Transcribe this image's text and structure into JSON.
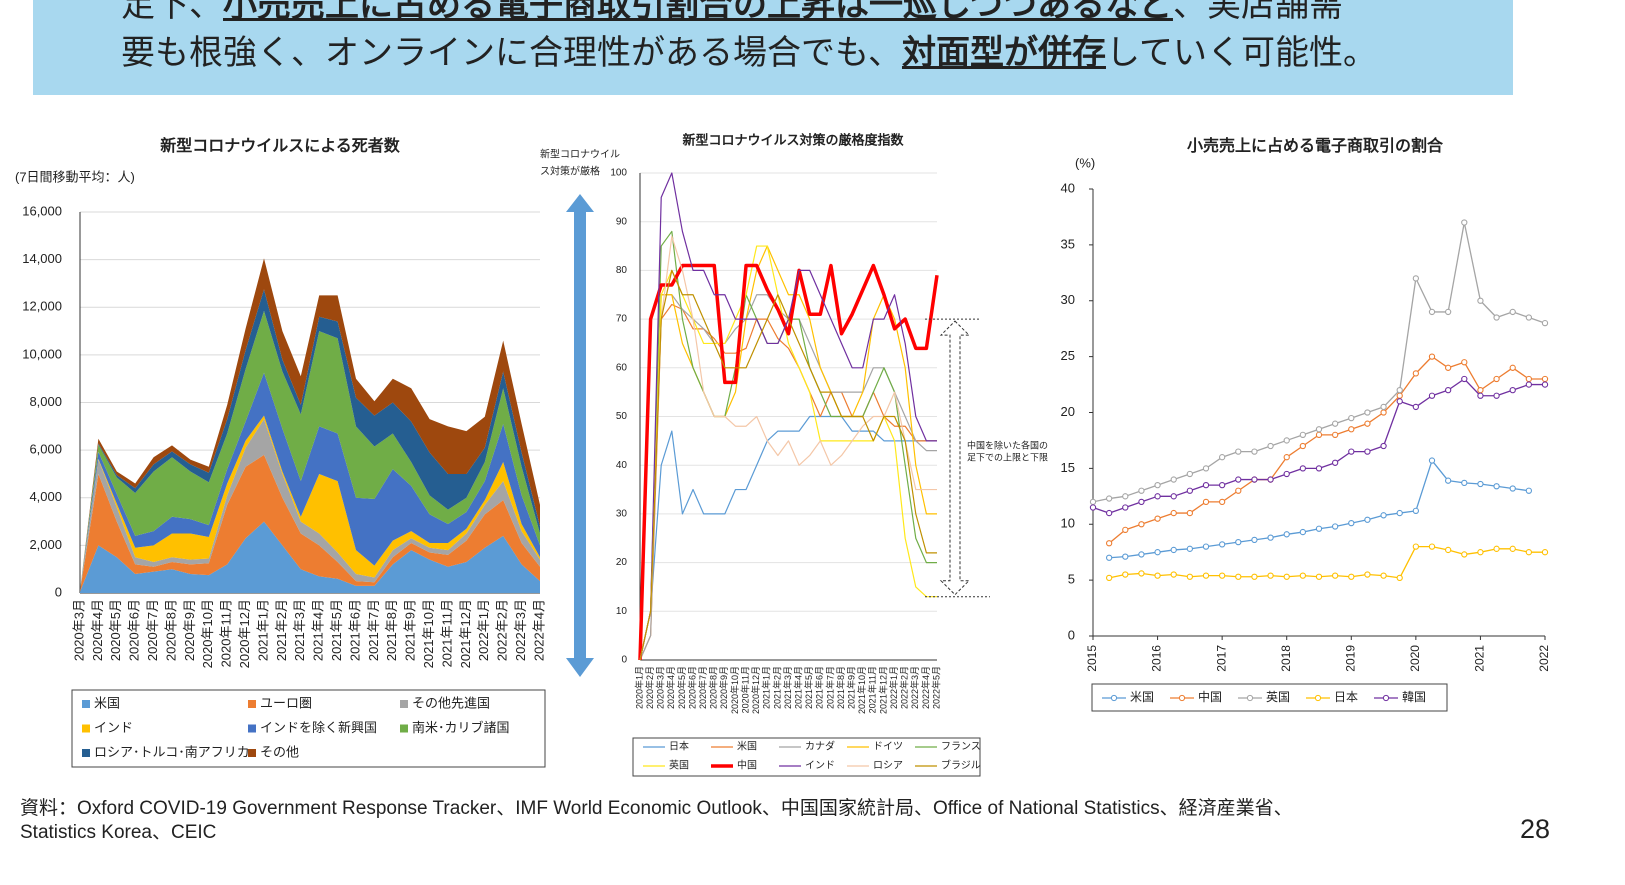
{
  "banner": {
    "line1": [
      "足下、",
      "小売売上に占める電子商取引割合の上昇は一巡しつつあるなど",
      "、実店舗需"
    ],
    "line2": [
      "要も根強く、オンラインに合理性がある場合でも、",
      "対面型が併存",
      "していく可能性。"
    ]
  },
  "chart_data": [
    {
      "type": "area",
      "stacked": true,
      "title": "新型コロナウイルスによる死者数",
      "y_unit": "(7日間移動平均：人)",
      "categories": [
        "2020年3月",
        "2020年4月",
        "2020年5月",
        "2020年6月",
        "2020年7月",
        "2020年8月",
        "2020年9月",
        "2020年10月",
        "2020年11月",
        "2020年12月",
        "2021年1月",
        "2021年2月",
        "2021年3月",
        "2021年4月",
        "2021年5月",
        "2021年6月",
        "2021年7月",
        "2021年8月",
        "2021年9月",
        "2021年10月",
        "2021年11月",
        "2021年12月",
        "2022年1月",
        "2022年2月",
        "2022年3月",
        "2022年4月"
      ],
      "ylim": [
        0,
        16000
      ],
      "yticks": [
        0,
        {
          "value": 2000,
          "label": "2,000"
        },
        {
          "value": 4000,
          "label": "4,000"
        },
        {
          "value": 6000,
          "label": "6,000"
        },
        {
          "value": 8000,
          "label": "8,000"
        },
        {
          "value": 10000,
          "label": "10,000"
        },
        {
          "value": 12000,
          "label": "12,000"
        },
        {
          "value": 14000,
          "label": "14,000"
        },
        {
          "value": 16000,
          "label": "16,000"
        }
      ],
      "grid": true,
      "series": [
        {
          "name": "米国",
          "color": "#5b9bd5",
          "values": [
            50,
            2000,
            1500,
            800,
            900,
            1000,
            800,
            750,
            1200,
            2300,
            3000,
            2000,
            1000,
            700,
            600,
            300,
            300,
            1200,
            1800,
            1400,
            1100,
            1300,
            1900,
            2400,
            1200,
            500
          ]
        },
        {
          "name": "ユーロ圏",
          "color": "#ed7d31",
          "values": [
            40,
            3000,
            1500,
            400,
            200,
            300,
            400,
            500,
            2500,
            3000,
            2800,
            2000,
            1500,
            1300,
            700,
            200,
            150,
            300,
            300,
            300,
            500,
            900,
            1400,
            1500,
            900,
            600
          ]
        },
        {
          "name": "その他先進国",
          "color": "#a5a5a5",
          "values": [
            5,
            600,
            600,
            300,
            200,
            200,
            200,
            200,
            400,
            800,
            1500,
            1000,
            500,
            500,
            400,
            300,
            200,
            300,
            200,
            200,
            200,
            300,
            400,
            800,
            500,
            300
          ]
        },
        {
          "name": "インド",
          "color": "#ffc000",
          "values": [
            0,
            30,
            150,
            400,
            700,
            1000,
            1100,
            900,
            500,
            300,
            150,
            100,
            200,
            2500,
            3000,
            1000,
            500,
            400,
            300,
            200,
            300,
            200,
            200,
            800,
            300,
            100
          ]
        },
        {
          "name": "インドを除く新興国",
          "color": "#4472c4",
          "values": [
            5,
            300,
            400,
            500,
            600,
            700,
            600,
            500,
            600,
            800,
            1800,
            1800,
            1500,
            2000,
            2000,
            2200,
            2800,
            3000,
            1900,
            1200,
            800,
            700,
            800,
            1600,
            1200,
            500
          ]
        },
        {
          "name": "南米･カリブ諸国",
          "color": "#70ad47",
          "values": [
            0,
            300,
            700,
            1800,
            2500,
            2500,
            2000,
            1800,
            1500,
            2200,
            2600,
            2400,
            2800,
            4000,
            4000,
            3000,
            2200,
            1500,
            1000,
            800,
            600,
            600,
            800,
            1500,
            1200,
            500
          ]
        },
        {
          "name": "ロシア･トルコ･南アフリカ",
          "color": "#255e91",
          "values": [
            0,
            50,
            100,
            200,
            300,
            250,
            300,
            400,
            600,
            800,
            900,
            500,
            400,
            600,
            700,
            1200,
            1300,
            1300,
            1700,
            1800,
            1500,
            1000,
            600,
            700,
            600,
            300
          ]
        },
        {
          "name": "その他",
          "color": "#9e480e",
          "values": [
            0,
            200,
            150,
            200,
            300,
            250,
            200,
            250,
            600,
            900,
            1300,
            1200,
            1200,
            900,
            1100,
            800,
            600,
            1000,
            1400,
            1400,
            2000,
            1800,
            1300,
            1300,
            1200,
            900
          ]
        }
      ]
    },
    {
      "type": "line",
      "title": "新型コロナウイルス対策の厳格度指数",
      "annotations": [
        "新型コロナウイル",
        "ス対策が厳格",
        "中国を除いた各国の",
        "足下での上限と下限"
      ],
      "annotation_range": [
        13,
        70
      ],
      "categories": [
        "2020年1月",
        "2020年2月",
        "2020年3月",
        "2020年4月",
        "2020年5月",
        "2020年6月",
        "2020年7月",
        "2020年8月",
        "2020年9月",
        "2020年10月",
        "2020年11月",
        "2020年12月",
        "2021年1月",
        "2021年2月",
        "2021年3月",
        "2021年4月",
        "2021年5月",
        "2021年6月",
        "2021年7月",
        "2021年8月",
        "2021年9月",
        "2021年10月",
        "2021年11月",
        "2021年12月",
        "2022年1月",
        "2022年2月",
        "2022年3月",
        "2022年4月",
        "2022年5月"
      ],
      "ylim": [
        0,
        100
      ],
      "yticks": [
        0,
        10,
        20,
        30,
        40,
        50,
        60,
        70,
        80,
        90,
        100
      ],
      "grid": true,
      "series": [
        {
          "name": "日本",
          "color": "#5b9bd5",
          "values": [
            0,
            10,
            40,
            47,
            30,
            35,
            30,
            30,
            30,
            35,
            35,
            40,
            45,
            47,
            47,
            47,
            50,
            50,
            50,
            50,
            47,
            47,
            47,
            45,
            45,
            45,
            45,
            45,
            45
          ]
        },
        {
          "name": "米国",
          "color": "#ed7d31",
          "values": [
            0,
            5,
            70,
            73,
            72,
            68,
            68,
            66,
            63,
            63,
            64,
            70,
            70,
            66,
            64,
            60,
            55,
            50,
            55,
            55,
            50,
            50,
            55,
            50,
            48,
            48,
            45,
            45,
            45
          ]
        },
        {
          "name": "カナダ",
          "color": "#a5a5a5",
          "values": [
            0,
            5,
            75,
            75,
            72,
            70,
            68,
            65,
            65,
            68,
            70,
            75,
            75,
            72,
            70,
            70,
            65,
            60,
            55,
            55,
            55,
            55,
            60,
            60,
            55,
            50,
            45,
            43,
            43
          ]
        },
        {
          "name": "ドイツ",
          "color": "#ffc000",
          "values": [
            0,
            10,
            75,
            75,
            65,
            60,
            55,
            50,
            50,
            55,
            70,
            80,
            85,
            80,
            75,
            75,
            70,
            60,
            55,
            50,
            50,
            55,
            70,
            75,
            70,
            60,
            40,
            30,
            30
          ]
        },
        {
          "name": "フランス",
          "color": "#70ad47",
          "values": [
            0,
            10,
            85,
            88,
            70,
            60,
            55,
            50,
            50,
            60,
            75,
            70,
            65,
            65,
            70,
            70,
            60,
            55,
            50,
            50,
            50,
            50,
            55,
            60,
            55,
            40,
            25,
            20,
            20
          ]
        },
        {
          "name": "英国",
          "color": "#ffe81a",
          "values": [
            0,
            10,
            75,
            80,
            75,
            70,
            65,
            65,
            65,
            70,
            75,
            85,
            85,
            75,
            65,
            60,
            55,
            45,
            45,
            45,
            45,
            45,
            45,
            50,
            45,
            25,
            15,
            13,
            13
          ]
        },
        {
          "name": "中国",
          "color": "#ff0000",
          "width": 3.5,
          "values": [
            0,
            70,
            77,
            77,
            81,
            81,
            81,
            81,
            57,
            57,
            81,
            81,
            76,
            72,
            67,
            80,
            71,
            71,
            81,
            67,
            71,
            76,
            81,
            75,
            68,
            70,
            64,
            64,
            79
          ]
        },
        {
          "name": "インド",
          "color": "#7030a0",
          "values": [
            0,
            10,
            95,
            100,
            88,
            80,
            80,
            75,
            75,
            70,
            70,
            70,
            65,
            65,
            70,
            80,
            80,
            75,
            70,
            65,
            60,
            60,
            70,
            70,
            75,
            65,
            50,
            45,
            45
          ]
        },
        {
          "name": "ロシア",
          "color": "#f4c7a8",
          "values": [
            0,
            10,
            70,
            87,
            80,
            70,
            55,
            50,
            50,
            48,
            48,
            50,
            45,
            42,
            45,
            40,
            42,
            45,
            40,
            42,
            45,
            48,
            50,
            50,
            55,
            45,
            35,
            35,
            35
          ]
        },
        {
          "name": "ブラジル",
          "color": "#bf9000",
          "values": [
            0,
            10,
            70,
            80,
            75,
            75,
            70,
            65,
            60,
            60,
            60,
            65,
            70,
            75,
            70,
            65,
            60,
            55,
            55,
            50,
            50,
            50,
            45,
            50,
            50,
            45,
            30,
            22,
            22
          ]
        }
      ]
    },
    {
      "type": "line",
      "markers": true,
      "title": "小売売上に占める電子商取引の割合",
      "y_unit": "(%)",
      "x": [
        2015,
        2015.25,
        2015.5,
        2015.75,
        2016,
        2016.25,
        2016.5,
        2016.75,
        2017,
        2017.25,
        2017.5,
        2017.75,
        2018,
        2018.25,
        2018.5,
        2018.75,
        2019,
        2019.25,
        2019.5,
        2019.75,
        2020,
        2020.25,
        2020.5,
        2020.75,
        2021,
        2021.25,
        2021.5,
        2021.75,
        2022
      ],
      "xlim": [
        2015,
        2022
      ],
      "xticks": [
        2015,
        2016,
        2017,
        2018,
        2019,
        2020,
        2021,
        2022
      ],
      "ylim": [
        0,
        40
      ],
      "yticks": [
        0,
        5,
        10,
        15,
        20,
        25,
        30,
        35,
        40
      ],
      "grid": false,
      "series": [
        {
          "name": "米国",
          "color": "#5b9bd5",
          "values": [
            null,
            7,
            7.1,
            7.3,
            7.5,
            7.7,
            7.8,
            8,
            8.2,
            8.4,
            8.6,
            8.8,
            9.1,
            9.3,
            9.6,
            9.8,
            10.1,
            10.4,
            10.8,
            11,
            11.2,
            15.7,
            13.9,
            13.7,
            13.6,
            13.4,
            13.2,
            13,
            null
          ]
        },
        {
          "name": "中国",
          "color": "#ed7d31",
          "values": [
            null,
            8.3,
            9.5,
            10,
            10.5,
            11,
            11,
            12,
            12,
            13,
            14,
            14,
            16,
            17,
            18,
            18,
            18.5,
            19,
            20,
            21.5,
            23.5,
            25,
            24,
            24.5,
            22,
            23,
            24,
            23,
            23
          ]
        },
        {
          "name": "英国",
          "color": "#a5a5a5",
          "values": [
            12,
            12.3,
            12.5,
            13,
            13.5,
            14,
            14.5,
            15,
            16,
            16.5,
            16.5,
            17,
            17.5,
            18,
            18.5,
            19,
            19.5,
            20,
            20.5,
            22,
            32,
            29,
            29,
            37,
            30,
            28.5,
            29,
            28.5,
            28
          ]
        },
        {
          "name": "日本",
          "color": "#ffc000",
          "values": [
            null,
            5.2,
            5.5,
            5.6,
            5.4,
            5.5,
            5.3,
            5.4,
            5.4,
            5.3,
            5.3,
            5.4,
            5.3,
            5.4,
            5.3,
            5.4,
            5.3,
            5.5,
            5.4,
            5.2,
            8,
            8,
            7.7,
            7.3,
            7.5,
            7.8,
            7.8,
            7.5,
            7.5
          ]
        },
        {
          "name": "韓国",
          "color": "#7030a0",
          "values": [
            11.5,
            11,
            11.5,
            12,
            12.5,
            12.5,
            13,
            13.5,
            13.5,
            14,
            14,
            14,
            14.5,
            15,
            15,
            15.5,
            16.5,
            16.5,
            17,
            21,
            20.5,
            21.5,
            22,
            23,
            21.5,
            21.5,
            22,
            22.5,
            22.5
          ]
        }
      ]
    }
  ],
  "footer": {
    "source_line1": "資料：Oxford COVID-19 Government Response Tracker、IMF World Economic Outlook、中国国家統計局、Office of National Statistics、経済産業省、",
    "source_line2": "Statistics Korea、CEIC",
    "page_number": "28"
  }
}
